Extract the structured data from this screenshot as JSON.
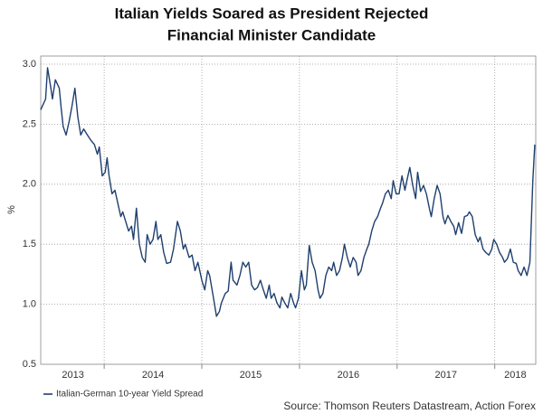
{
  "chart_data": {
    "type": "line",
    "title": [
      "Italian Yields Soared as President Rejected",
      "Financial Minister Candidate"
    ],
    "ylabel": "%",
    "source": "Source: Thomson Reuters Datastream, Action Forex",
    "xlim": [
      2013.35,
      2018.42
    ],
    "xticks": [
      {
        "value": 2013.68,
        "label": "2013"
      },
      {
        "value": 2014.5,
        "label": "2014"
      },
      {
        "value": 2015.5,
        "label": "2015"
      },
      {
        "value": 2016.5,
        "label": "2016"
      },
      {
        "value": 2017.5,
        "label": "2017"
      },
      {
        "value": 2018.21,
        "label": "2018"
      }
    ],
    "xgrid": [
      2014,
      2015,
      2016,
      2017,
      2018
    ],
    "ylim": [
      0.5,
      3.0
    ],
    "yticks": [
      {
        "value": 0.5,
        "label": "0.5"
      },
      {
        "value": 1,
        "label": "1.0"
      },
      {
        "value": 1.5,
        "label": "1.5"
      },
      {
        "value": 2,
        "label": "2.0"
      },
      {
        "value": 2.5,
        "label": "2.5"
      },
      {
        "value": 3,
        "label": "3.0"
      }
    ],
    "grid": true,
    "legend": "bottom-left",
    "x": [
      2013.35,
      2013.4,
      2013.42,
      2013.45,
      2013.47,
      2013.5,
      2013.54,
      2013.56,
      2013.58,
      2013.61,
      2013.64,
      2013.67,
      2013.7,
      2013.73,
      2013.76,
      2013.79,
      2013.82,
      2013.86,
      2013.9,
      2013.93,
      2013.95,
      2013.98,
      2014.01,
      2014.03,
      2014.05,
      2014.08,
      2014.11,
      2014.14,
      2014.17,
      2014.19,
      2014.22,
      2014.25,
      2014.28,
      2014.3,
      2014.33,
      2014.36,
      2014.39,
      2014.42,
      2014.44,
      2014.47,
      2014.5,
      2014.53,
      2014.55,
      2014.58,
      2014.61,
      2014.64,
      2014.68,
      2014.71,
      2014.75,
      2014.78,
      2014.81,
      2014.83,
      2014.87,
      2014.9,
      2014.93,
      2014.96,
      2015.0,
      2015.03,
      2015.06,
      2015.08,
      2015.12,
      2015.15,
      2015.18,
      2015.2,
      2015.24,
      2015.27,
      2015.3,
      2015.32,
      2015.36,
      2015.39,
      2015.42,
      2015.45,
      2015.48,
      2015.51,
      2015.54,
      2015.57,
      2015.6,
      2015.63,
      2015.66,
      2015.69,
      2015.71,
      2015.74,
      2015.77,
      2015.8,
      2015.82,
      2015.85,
      2015.88,
      2015.91,
      2015.94,
      2015.96,
      2015.99,
      2016.02,
      2016.05,
      2016.07,
      2016.1,
      2016.13,
      2016.16,
      2016.19,
      2016.21,
      2016.24,
      2016.27,
      2016.3,
      2016.33,
      2016.35,
      2016.38,
      2016.41,
      2016.44,
      2016.46,
      2016.49,
      2016.52,
      2016.55,
      2016.58,
      2016.6,
      2016.63,
      2016.66,
      2016.69,
      2016.71,
      2016.74,
      2016.77,
      2016.8,
      2016.83,
      2016.85,
      2016.88,
      2016.91,
      2016.94,
      2016.96,
      2016.99,
      2017.02,
      2017.05,
      2017.08,
      2017.1,
      2017.13,
      2017.16,
      2017.19,
      2017.21,
      2017.24,
      2017.27,
      2017.3,
      2017.33,
      2017.35,
      2017.38,
      2017.41,
      2017.44,
      2017.47,
      2017.49,
      2017.52,
      2017.55,
      2017.58,
      2017.6,
      2017.63,
      2017.66,
      2017.69,
      2017.72,
      2017.74,
      2017.77,
      2017.8,
      2017.83,
      2017.85,
      2017.88,
      2017.91,
      2017.94,
      2017.97,
      2017.99,
      2018.02,
      2018.05,
      2018.08,
      2018.1,
      2018.13,
      2018.16,
      2018.19,
      2018.22,
      2018.24,
      2018.27,
      2018.3,
      2018.33,
      2018.36,
      2018.37,
      2018.39,
      2018.41
    ],
    "series": [
      {
        "name": "Italian-German 10-year Yield Spread",
        "color": "#1f3f6e",
        "values": [
          2.62,
          2.71,
          2.97,
          2.82,
          2.71,
          2.87,
          2.8,
          2.63,
          2.48,
          2.41,
          2.52,
          2.65,
          2.8,
          2.56,
          2.41,
          2.46,
          2.42,
          2.37,
          2.33,
          2.25,
          2.31,
          2.07,
          2.1,
          2.22,
          2.07,
          1.92,
          1.95,
          1.84,
          1.73,
          1.77,
          1.69,
          1.61,
          1.65,
          1.54,
          1.8,
          1.5,
          1.39,
          1.35,
          1.58,
          1.5,
          1.54,
          1.69,
          1.54,
          1.58,
          1.43,
          1.34,
          1.35,
          1.46,
          1.69,
          1.61,
          1.46,
          1.5,
          1.39,
          1.41,
          1.28,
          1.35,
          1.2,
          1.12,
          1.28,
          1.24,
          1.05,
          0.9,
          0.94,
          1.01,
          1.09,
          1.11,
          1.35,
          1.2,
          1.16,
          1.24,
          1.35,
          1.31,
          1.35,
          1.16,
          1.12,
          1.14,
          1.2,
          1.12,
          1.05,
          1.16,
          1.05,
          1.09,
          1.01,
          0.97,
          1.06,
          1.01,
          0.97,
          1.09,
          1.01,
          0.97,
          1.05,
          1.28,
          1.12,
          1.16,
          1.49,
          1.35,
          1.28,
          1.12,
          1.05,
          1.09,
          1.24,
          1.31,
          1.28,
          1.35,
          1.24,
          1.28,
          1.39,
          1.5,
          1.39,
          1.31,
          1.39,
          1.35,
          1.24,
          1.28,
          1.39,
          1.46,
          1.5,
          1.61,
          1.69,
          1.73,
          1.8,
          1.84,
          1.92,
          1.95,
          1.88,
          2.03,
          1.92,
          1.92,
          2.07,
          1.95,
          2.03,
          2.14,
          1.99,
          1.88,
          2.1,
          1.94,
          1.99,
          1.92,
          1.8,
          1.73,
          1.88,
          1.99,
          1.92,
          1.73,
          1.67,
          1.74,
          1.69,
          1.65,
          1.58,
          1.68,
          1.59,
          1.73,
          1.74,
          1.77,
          1.73,
          1.58,
          1.52,
          1.56,
          1.46,
          1.43,
          1.41,
          1.46,
          1.54,
          1.5,
          1.43,
          1.39,
          1.35,
          1.38,
          1.46,
          1.35,
          1.34,
          1.28,
          1.24,
          1.31,
          1.24,
          1.35,
          1.58,
          2.03,
          2.33
        ]
      }
    ]
  }
}
